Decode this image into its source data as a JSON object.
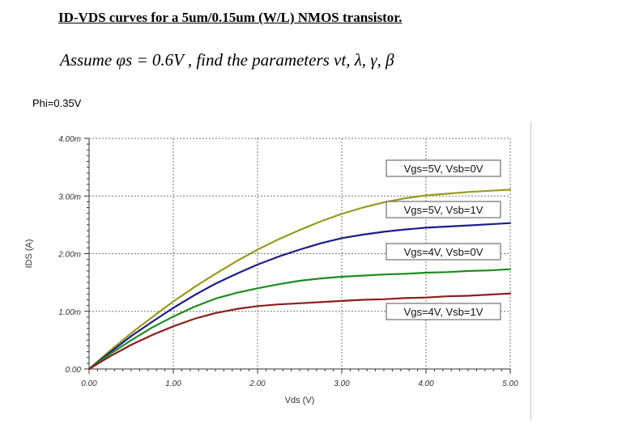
{
  "header": {
    "title": "ID-VDS curves for a 5um/0.15um (W/L) NMOS transistor.",
    "subtitle": "Assume φs = 0.6V , find the parameters vt, λ, γ, β",
    "note": "Phi=0.35V"
  },
  "chart_data": {
    "type": "line",
    "xlabel": "Vds (V)",
    "ylabel": "IDS (A)",
    "xlim": [
      0,
      5
    ],
    "ylim": [
      0,
      0.004
    ],
    "x_ticks": [
      "0.00",
      "1.00",
      "2.00",
      "3.00",
      "4.00",
      "5.00"
    ],
    "y_ticks": [
      "0.00",
      "1.00m",
      "2.00m",
      "3.00m",
      "4.00m"
    ],
    "grid": true,
    "series": [
      {
        "name": "Vgs=5V, Vsb=0V",
        "color": "#9a9a1e",
        "x": [
          0,
          0.25,
          0.5,
          0.75,
          1.0,
          1.25,
          1.5,
          1.75,
          2.0,
          2.25,
          2.5,
          2.75,
          3.0,
          3.25,
          3.5,
          3.75,
          4.0,
          4.25,
          4.5,
          4.75,
          5.0
        ],
        "y": [
          0,
          0.00032,
          0.00062,
          0.0009,
          0.00117,
          0.00142,
          0.00165,
          0.00187,
          0.00207,
          0.00225,
          0.00241,
          0.00256,
          0.00269,
          0.0028,
          0.00289,
          0.00296,
          0.00301,
          0.00304,
          0.00307,
          0.00309,
          0.00311
        ]
      },
      {
        "name": "Vgs=5V, Vsb=1V",
        "color": "#1c1c8c",
        "x": [
          0,
          0.25,
          0.5,
          0.75,
          1.0,
          1.25,
          1.5,
          1.75,
          2.0,
          2.25,
          2.5,
          2.75,
          3.0,
          3.25,
          3.5,
          3.75,
          4.0,
          4.25,
          4.5,
          4.75,
          5.0
        ],
        "y": [
          0,
          0.00029,
          0.00057,
          0.00082,
          0.00106,
          0.00128,
          0.00148,
          0.00165,
          0.00181,
          0.00195,
          0.00207,
          0.00218,
          0.00227,
          0.00233,
          0.00238,
          0.00242,
          0.00245,
          0.00247,
          0.00249,
          0.00251,
          0.00253
        ]
      },
      {
        "name": "Vgs=4V, Vsb=0V",
        "color": "#1e8c1e",
        "x": [
          0,
          0.25,
          0.5,
          0.75,
          1.0,
          1.25,
          1.5,
          1.75,
          2.0,
          2.25,
          2.5,
          2.75,
          3.0,
          3.25,
          3.5,
          3.75,
          4.0,
          4.25,
          4.5,
          4.75,
          5.0
        ],
        "y": [
          0,
          0.00026,
          0.0005,
          0.00072,
          0.00091,
          0.00108,
          0.00122,
          0.00132,
          0.0014,
          0.00147,
          0.00153,
          0.00157,
          0.0016,
          0.00162,
          0.00164,
          0.00165,
          0.00167,
          0.00168,
          0.0017,
          0.00171,
          0.00173
        ]
      },
      {
        "name": "Vgs=4V, Vsb=1V",
        "color": "#8c1e1e",
        "x": [
          0,
          0.25,
          0.5,
          0.75,
          1.0,
          1.25,
          1.5,
          1.75,
          2.0,
          2.25,
          2.5,
          2.75,
          3.0,
          3.25,
          3.5,
          3.75,
          4.0,
          4.25,
          4.5,
          4.75,
          5.0
        ],
        "y": [
          0,
          0.00022,
          0.00042,
          0.00059,
          0.00074,
          0.00087,
          0.00097,
          0.00104,
          0.00109,
          0.00112,
          0.00114,
          0.00116,
          0.00118,
          0.0012,
          0.00121,
          0.00123,
          0.00124,
          0.00126,
          0.00127,
          0.00129,
          0.00131
        ]
      }
    ]
  }
}
